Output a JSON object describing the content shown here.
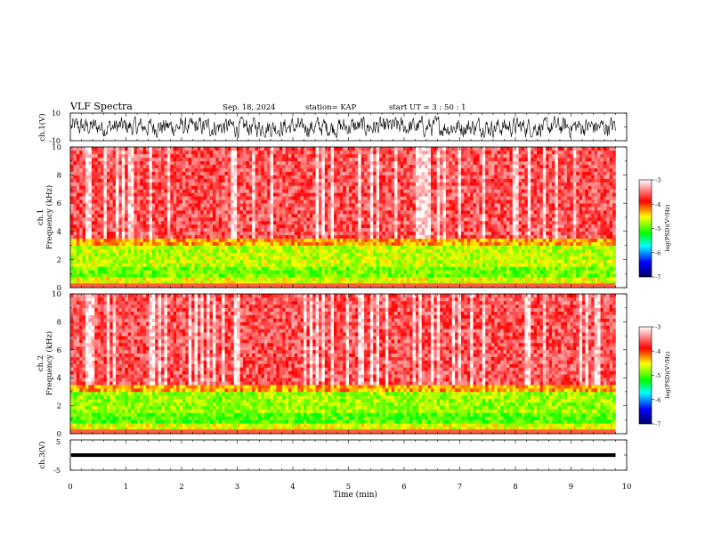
{
  "header": {
    "title": "VLF Spectra",
    "date": "Sep. 18, 2024",
    "station": "station= KAP",
    "start": "start  UT =   3 : 50 : 1"
  },
  "colors": {
    "background": "#ffffff",
    "axes": "#000000",
    "spectrogram_low": "#00a000",
    "spectrogram_high": "#ff0000",
    "colorbar_stops": [
      "#000080",
      "#0000ff",
      "#00ffff",
      "#00ff00",
      "#ffff00",
      "#ff0000",
      "#ffffff"
    ]
  },
  "chart_data": [
    {
      "type": "line",
      "panel": "ch1-waveform",
      "ylabel": "ch.1(V)",
      "ylim": [
        -10,
        10
      ],
      "yticks": [
        "10",
        "-10"
      ],
      "xlim": [
        0,
        10
      ],
      "description_of_signal": "noise",
      "y_mean": 0,
      "y_range": [
        -8,
        8
      ]
    },
    {
      "type": "heatmap",
      "panel": "ch1-spectrogram",
      "ylabel": "ch.1\nFrequency (kHz)",
      "ylim": [
        0,
        10
      ],
      "yticks": [
        "0",
        "2",
        "4",
        "6",
        "8",
        "10"
      ],
      "xlim": [
        0,
        10
      ],
      "x_data_end": 9.8,
      "colorbar": {
        "label": "log(PSD)(V²/Hz)",
        "range": [
          -7,
          -3
        ],
        "ticks": [
          "-3",
          "-4",
          "-5",
          "-6",
          "-7"
        ]
      },
      "bands": [
        {
          "fmin": 0.3,
          "fmax": 0.8,
          "level": -4.6
        },
        {
          "fmin": 0.8,
          "fmax": 1.5,
          "level": -4.9
        },
        {
          "fmin": 1.5,
          "fmax": 3.0,
          "level": -4.7
        },
        {
          "fmin": 3.0,
          "fmax": 3.6,
          "level": -4.3
        },
        {
          "fmin": 3.6,
          "fmax": 10,
          "level": -3.6
        }
      ]
    },
    {
      "type": "heatmap",
      "panel": "ch2-spectrogram",
      "ylabel": "ch.2\nFrequency (kHz)",
      "ylim": [
        0,
        10
      ],
      "yticks": [
        "0",
        "2",
        "4",
        "6",
        "8",
        "10"
      ],
      "xlim": [
        0,
        10
      ],
      "x_data_end": 9.8,
      "colorbar": {
        "label": "log(PSD)(V²/Hz)",
        "range": [
          -7,
          -3
        ],
        "ticks": [
          "-3",
          "-4",
          "-5",
          "-6",
          "-7"
        ]
      },
      "bands": [
        {
          "fmin": 0.3,
          "fmax": 0.8,
          "level": -4.6
        },
        {
          "fmin": 0.8,
          "fmax": 1.6,
          "level": -5.0
        },
        {
          "fmin": 1.6,
          "fmax": 3.0,
          "level": -4.8
        },
        {
          "fmin": 3.0,
          "fmax": 3.6,
          "level": -4.3
        },
        {
          "fmin": 3.6,
          "fmax": 10,
          "level": -3.6
        }
      ]
    },
    {
      "type": "line",
      "panel": "ch3-waveform",
      "ylabel": "ch.3(V)",
      "ylim": [
        -5,
        5
      ],
      "yticks": [
        "5",
        "-5"
      ],
      "xlim": [
        0,
        10
      ],
      "y_range": [
        -0.6,
        0.6
      ]
    }
  ],
  "xaxis": {
    "label": "Time (min)",
    "ticks": [
      "0",
      "1",
      "2",
      "3",
      "4",
      "5",
      "6",
      "7",
      "8",
      "9",
      "10"
    ],
    "range": [
      0,
      10
    ]
  }
}
